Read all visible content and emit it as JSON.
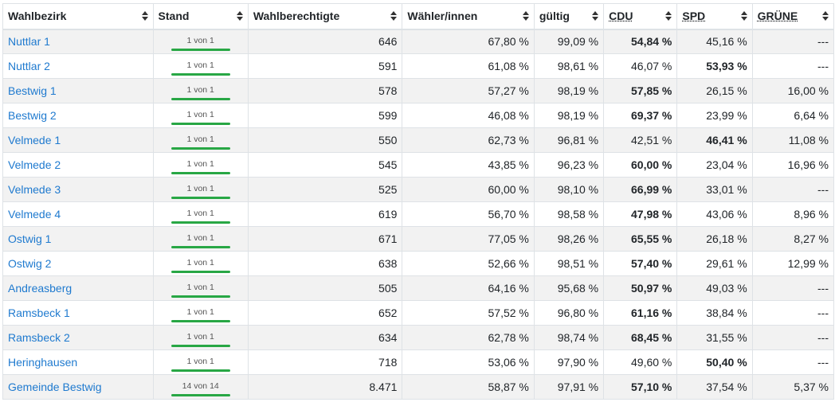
{
  "headers": [
    "Wahlbezirk",
    "Stand",
    "Wahlberechtigte",
    "Wähler/innen",
    "gültig",
    "CDU",
    "SPD",
    "GRÜNE"
  ],
  "rows": [
    {
      "name": "Nuttlar 1",
      "stand": "1 von 1",
      "berechtigte": "646",
      "waehler": "67,80 %",
      "gueltig": "99,09 %",
      "cdu": "54,84 %",
      "spd": "45,16 %",
      "gruene": "---",
      "winner": "cdu"
    },
    {
      "name": "Nuttlar 2",
      "stand": "1 von 1",
      "berechtigte": "591",
      "waehler": "61,08 %",
      "gueltig": "98,61 %",
      "cdu": "46,07 %",
      "spd": "53,93 %",
      "gruene": "---",
      "winner": "spd"
    },
    {
      "name": "Bestwig 1",
      "stand": "1 von 1",
      "berechtigte": "578",
      "waehler": "57,27 %",
      "gueltig": "98,19 %",
      "cdu": "57,85 %",
      "spd": "26,15 %",
      "gruene": "16,00 %",
      "winner": "cdu"
    },
    {
      "name": "Bestwig 2",
      "stand": "1 von 1",
      "berechtigte": "599",
      "waehler": "46,08 %",
      "gueltig": "98,19 %",
      "cdu": "69,37 %",
      "spd": "23,99 %",
      "gruene": "6,64 %",
      "winner": "cdu"
    },
    {
      "name": "Velmede 1",
      "stand": "1 von 1",
      "berechtigte": "550",
      "waehler": "62,73 %",
      "gueltig": "96,81 %",
      "cdu": "42,51 %",
      "spd": "46,41 %",
      "gruene": "11,08 %",
      "winner": "spd"
    },
    {
      "name": "Velmede 2",
      "stand": "1 von 1",
      "berechtigte": "545",
      "waehler": "43,85 %",
      "gueltig": "96,23 %",
      "cdu": "60,00 %",
      "spd": "23,04 %",
      "gruene": "16,96 %",
      "winner": "cdu"
    },
    {
      "name": "Velmede 3",
      "stand": "1 von 1",
      "berechtigte": "525",
      "waehler": "60,00 %",
      "gueltig": "98,10 %",
      "cdu": "66,99 %",
      "spd": "33,01 %",
      "gruene": "---",
      "winner": "cdu"
    },
    {
      "name": "Velmede 4",
      "stand": "1 von 1",
      "berechtigte": "619",
      "waehler": "56,70 %",
      "gueltig": "98,58 %",
      "cdu": "47,98 %",
      "spd": "43,06 %",
      "gruene": "8,96 %",
      "winner": "cdu"
    },
    {
      "name": "Ostwig 1",
      "stand": "1 von 1",
      "berechtigte": "671",
      "waehler": "77,05 %",
      "gueltig": "98,26 %",
      "cdu": "65,55 %",
      "spd": "26,18 %",
      "gruene": "8,27 %",
      "winner": "cdu"
    },
    {
      "name": "Ostwig 2",
      "stand": "1 von 1",
      "berechtigte": "638",
      "waehler": "52,66 %",
      "gueltig": "98,51 %",
      "cdu": "57,40 %",
      "spd": "29,61 %",
      "gruene": "12,99 %",
      "winner": "cdu"
    },
    {
      "name": "Andreasberg",
      "stand": "1 von 1",
      "berechtigte": "505",
      "waehler": "64,16 %",
      "gueltig": "95,68 %",
      "cdu": "50,97 %",
      "spd": "49,03 %",
      "gruene": "---",
      "winner": "cdu"
    },
    {
      "name": "Ramsbeck 1",
      "stand": "1 von 1",
      "berechtigte": "652",
      "waehler": "57,52 %",
      "gueltig": "96,80 %",
      "cdu": "61,16 %",
      "spd": "38,84 %",
      "gruene": "---",
      "winner": "cdu"
    },
    {
      "name": "Ramsbeck 2",
      "stand": "1 von 1",
      "berechtigte": "634",
      "waehler": "62,78 %",
      "gueltig": "98,74 %",
      "cdu": "68,45 %",
      "spd": "31,55 %",
      "gruene": "---",
      "winner": "cdu"
    },
    {
      "name": "Heringhausen",
      "stand": "1 von 1",
      "berechtigte": "718",
      "waehler": "53,06 %",
      "gueltig": "97,90 %",
      "cdu": "49,60 %",
      "spd": "50,40 %",
      "gruene": "---",
      "winner": "spd"
    },
    {
      "name": "Gemeinde Bestwig",
      "stand": "14 von 14",
      "berechtigte": "8.471",
      "waehler": "58,87 %",
      "gueltig": "97,91 %",
      "cdu": "57,10 %",
      "spd": "37,54 %",
      "gruene": "5,37 %",
      "winner": "cdu"
    }
  ],
  "colors": {
    "link": "#1f7acf",
    "progress": "#28a745",
    "stripe": "#f2f2f2",
    "border": "#dee2e6"
  },
  "icons": {
    "sort": "sort-both-icon"
  }
}
